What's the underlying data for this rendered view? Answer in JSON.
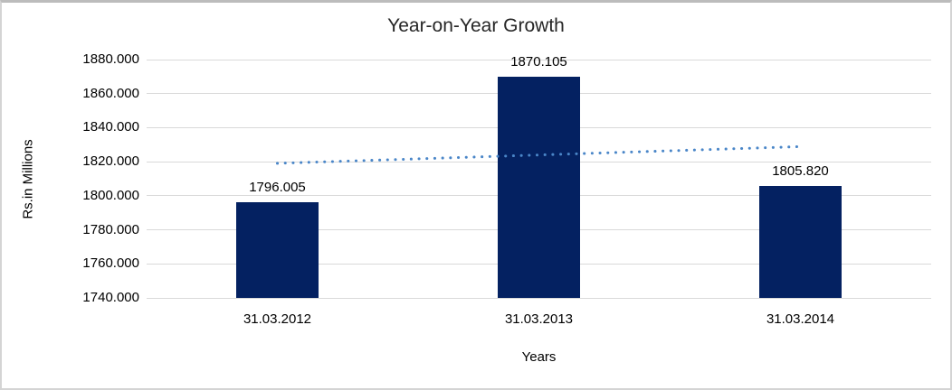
{
  "chart_data": {
    "type": "bar",
    "title": "Year-on-Year Growth",
    "xlabel": "Years",
    "ylabel": "Rs.in Millions",
    "categories": [
      "31.03.2012",
      "31.03.2013",
      "31.03.2014"
    ],
    "values": [
      1796.005,
      1870.105,
      1805.82
    ],
    "data_labels": [
      "1796.005",
      "1870.105",
      "1805.820"
    ],
    "ylim": [
      1740,
      1880
    ],
    "ytick_step": 20,
    "ytick_labels": [
      "1880.000",
      "1860.000",
      "1840.000",
      "1820.000",
      "1800.000",
      "1780.000",
      "1760.000",
      "1740.000"
    ],
    "grid": true,
    "legend": "none",
    "bar_color": "#042161",
    "gridline_color": "#d9d9d9",
    "trendline": {
      "type": "linear",
      "style": "dotted",
      "color": "#4a86c8"
    }
  }
}
